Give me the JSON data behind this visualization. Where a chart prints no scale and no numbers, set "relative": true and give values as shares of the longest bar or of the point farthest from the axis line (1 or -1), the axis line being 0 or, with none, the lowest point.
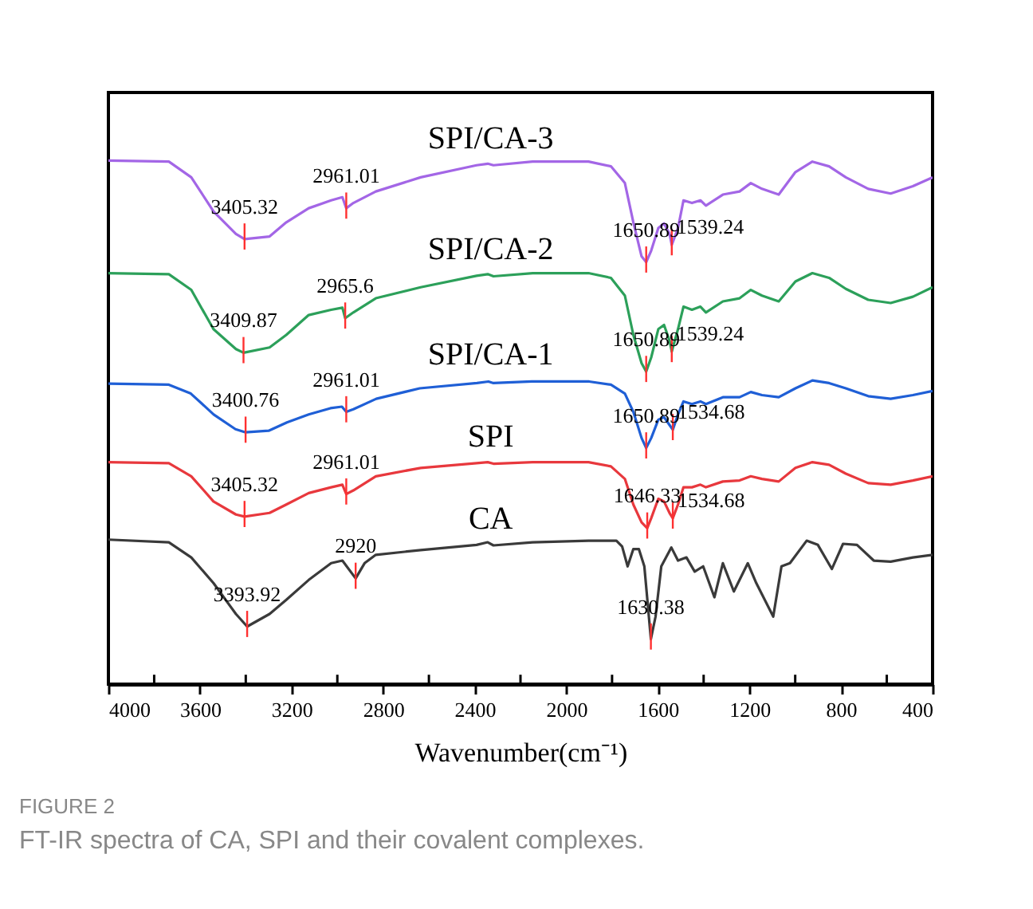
{
  "chart_data": {
    "type": "line",
    "relative": true,
    "xlabel": "Wavenumber(cm⁻¹)",
    "xlim": [
      4000,
      400
    ],
    "xticks": [
      4000,
      {
        "value": 3800,
        "label": null
      },
      3600,
      {
        "value": 3400,
        "label": null
      },
      3200,
      {
        "value": 3000,
        "label": null
      },
      2800,
      {
        "value": 2600,
        "label": null
      },
      2400,
      {
        "value": 2200,
        "label": null
      },
      2000,
      {
        "value": 1800,
        "label": null
      },
      1600,
      {
        "value": 1400,
        "label": null
      },
      1200,
      {
        "value": 1000,
        "label": null
      },
      800,
      {
        "value": 600,
        "label": null
      },
      400
    ],
    "legend": false,
    "grid": false,
    "series": [
      {
        "name": "SPI/CA-3",
        "color": "#a366e6",
        "x": [
          4000,
          3736,
          3638,
          3541,
          3443,
          3405.32,
          3296,
          3223,
          3125,
          3027,
          2978,
          2961.01,
          2930,
          2832,
          2636,
          2392,
          2343,
          2318,
          2147,
          1903,
          1805,
          1744,
          1707,
          1671,
          1650.89,
          1629,
          1598,
          1573,
          1549,
          1539.24,
          1512,
          1488,
          1451,
          1414,
          1390,
          1316,
          1243,
          1194,
          1145,
          1072,
          999,
          925,
          852,
          779,
          681,
          583,
          486,
          400
        ],
        "values": [
          1.0,
          0.998,
          0.968,
          0.903,
          0.86,
          0.85,
          0.855,
          0.882,
          0.909,
          0.924,
          0.93,
          0.909,
          0.919,
          0.941,
          0.968,
          0.991,
          0.994,
          0.991,
          0.998,
          0.998,
          0.989,
          0.957,
          0.882,
          0.817,
          0.806,
          0.828,
          0.871,
          0.88,
          0.86,
          0.839,
          0.871,
          0.924,
          0.919,
          0.924,
          0.914,
          0.935,
          0.941,
          0.957,
          0.946,
          0.935,
          0.978,
          0.998,
          0.989,
          0.968,
          0.946,
          0.937,
          0.951,
          0.968
        ]
      },
      {
        "name": "SPI/CA-2",
        "color": "#2ca05a",
        "x": [
          4000,
          3736,
          3638,
          3541,
          3443,
          3409.87,
          3296,
          3223,
          3125,
          3027,
          2978,
          2965.6,
          2930,
          2832,
          2636,
          2392,
          2343,
          2318,
          2147,
          1903,
          1805,
          1744,
          1707,
          1671,
          1650.89,
          1629,
          1598,
          1573,
          1549,
          1539.24,
          1512,
          1488,
          1451,
          1414,
          1390,
          1316,
          1243,
          1194,
          1145,
          1072,
          999,
          925,
          852,
          779,
          681,
          583,
          486,
          400
        ],
        "values": [
          0.785,
          0.783,
          0.753,
          0.678,
          0.64,
          0.633,
          0.643,
          0.667,
          0.705,
          0.715,
          0.719,
          0.699,
          0.71,
          0.737,
          0.758,
          0.78,
          0.783,
          0.779,
          0.785,
          0.785,
          0.776,
          0.742,
          0.667,
          0.613,
          0.597,
          0.624,
          0.678,
          0.686,
          0.656,
          0.635,
          0.678,
          0.721,
          0.715,
          0.721,
          0.71,
          0.731,
          0.737,
          0.753,
          0.742,
          0.731,
          0.769,
          0.785,
          0.776,
          0.755,
          0.734,
          0.728,
          0.74,
          0.758
        ]
      },
      {
        "name": "SPI/CA-1",
        "color": "#1f5fd6",
        "x": [
          4000,
          3736,
          3640,
          3540,
          3445,
          3400.76,
          3300,
          3220,
          3125,
          3030,
          2980,
          2961.01,
          2930,
          2830,
          2640,
          2390,
          2340,
          2318,
          2150,
          1900,
          1805,
          1744,
          1707,
          1671,
          1650.89,
          1629,
          1598,
          1573,
          1549,
          1534.68,
          1512,
          1488,
          1451,
          1414,
          1390,
          1316,
          1243,
          1194,
          1145,
          1072,
          999,
          925,
          852,
          779,
          681,
          583,
          486,
          400
        ],
        "values": [
          0.574,
          0.572,
          0.555,
          0.515,
          0.487,
          0.481,
          0.484,
          0.5,
          0.515,
          0.527,
          0.53,
          0.52,
          0.525,
          0.545,
          0.565,
          0.575,
          0.578,
          0.575,
          0.578,
          0.578,
          0.572,
          0.555,
          0.52,
          0.47,
          0.451,
          0.47,
          0.505,
          0.51,
          0.495,
          0.486,
          0.515,
          0.54,
          0.535,
          0.54,
          0.535,
          0.548,
          0.548,
          0.558,
          0.552,
          0.548,
          0.565,
          0.58,
          0.575,
          0.565,
          0.55,
          0.545,
          0.552,
          0.56
        ]
      },
      {
        "name": "SPI",
        "color": "#e8383d",
        "x": [
          4000,
          3736,
          3638,
          3541,
          3443,
          3405.32,
          3296,
          3223,
          3125,
          3027,
          2978,
          2961.01,
          2930,
          2832,
          2636,
          2392,
          2343,
          2318,
          2147,
          1903,
          1805,
          1744,
          1707,
          1671,
          1646.33,
          1629,
          1598,
          1573,
          1549,
          1534.68,
          1512,
          1488,
          1451,
          1414,
          1390,
          1316,
          1243,
          1194,
          1145,
          1072,
          999,
          925,
          852,
          779,
          681,
          583,
          486,
          400
        ],
        "values": [
          0.424,
          0.422,
          0.397,
          0.349,
          0.324,
          0.32,
          0.327,
          0.343,
          0.365,
          0.376,
          0.381,
          0.363,
          0.37,
          0.397,
          0.413,
          0.422,
          0.424,
          0.421,
          0.424,
          0.424,
          0.416,
          0.392,
          0.343,
          0.309,
          0.298,
          0.317,
          0.354,
          0.349,
          0.327,
          0.317,
          0.343,
          0.376,
          0.376,
          0.381,
          0.376,
          0.387,
          0.389,
          0.397,
          0.392,
          0.387,
          0.413,
          0.424,
          0.419,
          0.402,
          0.384,
          0.381,
          0.389,
          0.397
        ]
      },
      {
        "name": "CA",
        "color": "#3a3a3a",
        "x": [
          4000,
          3736,
          3638,
          3541,
          3443,
          3393.92,
          3296,
          3223,
          3125,
          3027,
          2978,
          2920,
          2881,
          2832,
          2636,
          2392,
          2343,
          2318,
          2147,
          1903,
          1781,
          1756,
          1732,
          1707,
          1683,
          1659,
          1630.38,
          1610,
          1585,
          1541,
          1512,
          1475,
          1439,
          1402,
          1353,
          1316,
          1268,
          1207,
          1170,
          1096,
          1060,
          1023,
          950,
          901,
          840,
          791,
          730,
          657,
          583,
          486,
          400
        ],
        "values": [
          0.276,
          0.271,
          0.242,
          0.193,
          0.134,
          0.11,
          0.134,
          0.161,
          0.199,
          0.231,
          0.236,
          0.202,
          0.231,
          0.247,
          0.256,
          0.266,
          0.271,
          0.265,
          0.271,
          0.274,
          0.274,
          0.263,
          0.225,
          0.258,
          0.258,
          0.225,
          0.086,
          0.129,
          0.225,
          0.261,
          0.236,
          0.242,
          0.215,
          0.225,
          0.166,
          0.231,
          0.177,
          0.231,
          0.193,
          0.129,
          0.225,
          0.231,
          0.274,
          0.266,
          0.22,
          0.268,
          0.266,
          0.236,
          0.234,
          0.242,
          0.247
        ]
      }
    ],
    "annotations": [
      {
        "text": "3405.32",
        "x": 3405.32,
        "y": 0.85
      },
      {
        "text": "2961.01",
        "x": 2961.01,
        "y": 0.909
      },
      {
        "text": "1650.89",
        "x": 1650.89,
        "y": 0.806
      },
      {
        "text": "1539.24",
        "x": 1539.24,
        "y": 0.839
      },
      {
        "text": "3409.87",
        "x": 3409.87,
        "y": 0.633
      },
      {
        "text": "2965.6",
        "x": 2965.6,
        "y": 0.699
      },
      {
        "text": "1650.89",
        "x": 1650.89,
        "y": 0.597
      },
      {
        "text": "1539.24",
        "x": 1539.24,
        "y": 0.635
      },
      {
        "text": "3400.76",
        "x": 3400.76,
        "y": 0.481
      },
      {
        "text": "2961.01",
        "x": 2961.01,
        "y": 0.52
      },
      {
        "text": "1650.89",
        "x": 1650.89,
        "y": 0.451
      },
      {
        "text": "1534.68",
        "x": 1534.68,
        "y": 0.486
      },
      {
        "text": "3405.32",
        "x": 3405.32,
        "y": 0.32
      },
      {
        "text": "2961.01",
        "x": 2961.01,
        "y": 0.363
      },
      {
        "text": "1646.33",
        "x": 1646.33,
        "y": 0.298
      },
      {
        "text": "1534.68",
        "x": 1534.68,
        "y": 0.317
      },
      {
        "text": "3393.92",
        "x": 3393.92,
        "y": 0.11
      },
      {
        "text": "2920",
        "x": 2920,
        "y": 0.202
      },
      {
        "text": "1630.38",
        "x": 1630.38,
        "y": 0.086
      },
      "FIGURE 2",
      "FT-IR spectra of CA, SPI and their covalent complexes."
    ]
  }
}
